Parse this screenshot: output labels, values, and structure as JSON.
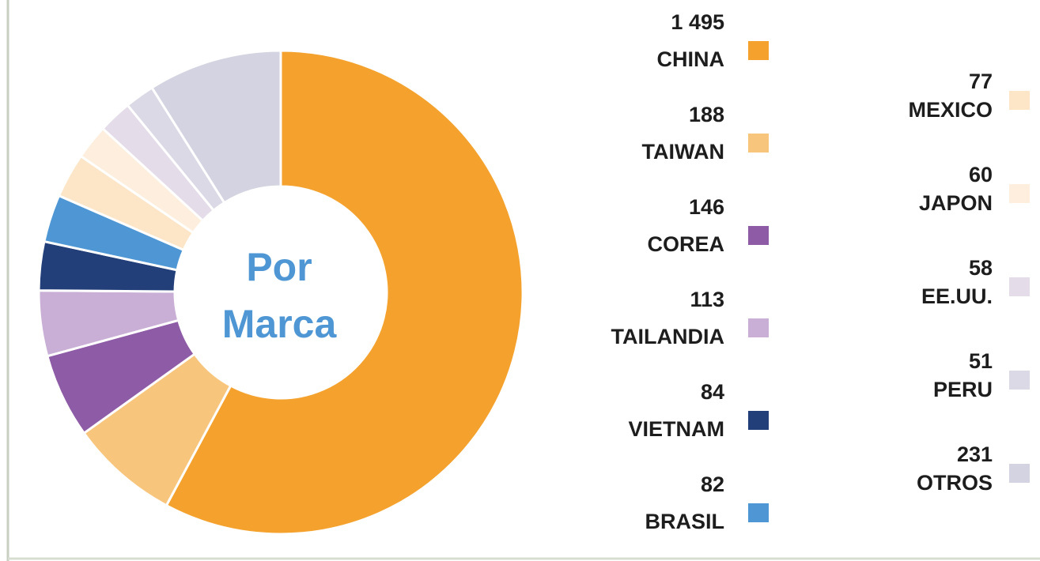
{
  "chart_data": {
    "type": "donut",
    "center_label": [
      "Por",
      "Marca"
    ],
    "categories": [
      "CHINA",
      "TAIWAN",
      "COREA",
      "TAILANDIA",
      "VIETNAM",
      "BRASIL",
      "MEXICO",
      "JAPON",
      "EE.UU.",
      "PERU",
      "OTROS"
    ],
    "values": [
      1495,
      188,
      146,
      113,
      84,
      82,
      77,
      60,
      58,
      51,
      231
    ],
    "value_labels": [
      "1 495",
      "188",
      "146",
      "113",
      "84",
      "82",
      "77",
      "60",
      "58",
      "51",
      "231"
    ],
    "colors": [
      "#f4a22d",
      "#f8c57d",
      "#8e5ba6",
      "#c9aed6",
      "#233f7a",
      "#4f97d4",
      "#fde6c8",
      "#fdeedd",
      "#e5dcea",
      "#dcd9e6",
      "#d3d3e1"
    ]
  }
}
